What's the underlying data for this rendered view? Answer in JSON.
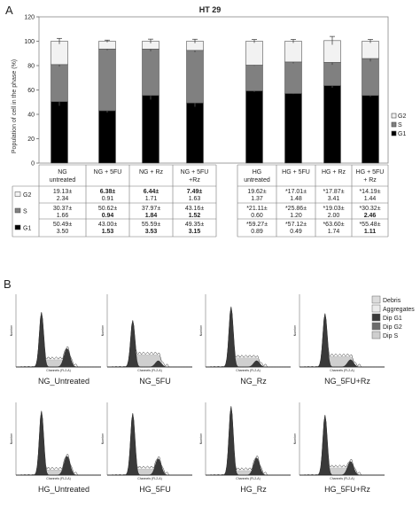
{
  "panel_a": {
    "letter": "A",
    "title": "HT 29",
    "ylabel": "Population of cell in the phase (%)",
    "legend": [
      "G2",
      "S",
      "G1"
    ]
  },
  "panel_b": {
    "letter": "B",
    "legend": [
      "Debris",
      "Aggregates",
      "Dip G1",
      "Dip G2",
      "Dip S"
    ],
    "histogram_xlabel": "Channels (FL2-A)",
    "histogram_ylabel": "Number",
    "histograms": [
      {
        "label": "NG_Untreated",
        "g1": 50.49,
        "s": 30.37,
        "g2": 19.13
      },
      {
        "label": "NG_5FU",
        "g1": 43.0,
        "s": 50.62,
        "g2": 6.38
      },
      {
        "label": "NG_Rz",
        "g1": 55.59,
        "s": 37.97,
        "g2": 6.44
      },
      {
        "label": "NG_5FU+Rz",
        "g1": 49.35,
        "s": 43.16,
        "g2": 7.49
      },
      {
        "label": "HG_Untreated",
        "g1": 59.27,
        "s": 21.11,
        "g2": 19.62
      },
      {
        "label": "HG_5FU",
        "g1": 57.12,
        "s": 25.86,
        "g2": 17.01
      },
      {
        "label": "HG_Rz",
        "g1": 63.6,
        "s": 19.03,
        "g2": 17.87
      },
      {
        "label": "HG_5FU+Rz",
        "g1": 55.48,
        "s": 30.32,
        "g2": 14.19
      }
    ]
  },
  "table": {
    "row_labels": [
      "G2",
      "S",
      "G1"
    ],
    "columns": [
      {
        "header": [
          "NG",
          "untreated"
        ],
        "g2": [
          "19.13±",
          "2.34"
        ],
        "s": [
          "30.37±",
          "1.66"
        ],
        "g1": [
          "50.49±",
          "3.50"
        ]
      },
      {
        "header": [
          "NG + 5FU",
          ""
        ],
        "g2": [
          "6.38±",
          "0.91"
        ],
        "s": [
          "50.62±",
          "0.94"
        ],
        "g1": [
          "43.00±",
          "1.53"
        ]
      },
      {
        "header": [
          "NG + Rz",
          ""
        ],
        "g2": [
          "6.44±",
          "1.71"
        ],
        "s": [
          "37.97±",
          "1.84"
        ],
        "g1": [
          "55.59±",
          "3.53"
        ]
      },
      {
        "header": [
          "NG + 5FU",
          "+Rz"
        ],
        "g2": [
          "7.49±",
          "1.63"
        ],
        "s": [
          "43.16±",
          "1.52"
        ],
        "g1": [
          "49.35±",
          "3.15"
        ]
      },
      {
        "header": [
          "HG",
          "untreated"
        ],
        "g2": [
          "19.62±",
          "1.37"
        ],
        "s": [
          "*21.11±",
          "0.60"
        ],
        "g1": [
          "*59.27±",
          "0.89"
        ]
      },
      {
        "header": [
          "HG + 5FU",
          ""
        ],
        "g2": [
          "*17.01±",
          "1.48"
        ],
        "s": [
          "*25.86±",
          "1.20"
        ],
        "g1": [
          "*57.12±",
          "0.49"
        ]
      },
      {
        "header": [
          "HG + Rz",
          ""
        ],
        "g2": [
          "*17.87±",
          "3.41"
        ],
        "s": [
          "*19.03±",
          "2.00"
        ],
        "g1": [
          "*63.60±",
          "1.74"
        ]
      },
      {
        "header": [
          "HG + 5FU",
          "+ Rz"
        ],
        "g2": [
          "*14.19±",
          "1.44"
        ],
        "s": [
          "*30.32±",
          "2.46"
        ],
        "g1": [
          "*55.48±",
          "1.11"
        ]
      }
    ]
  },
  "chart_data": {
    "type": "bar",
    "stacked": true,
    "title": "HT 29",
    "ylabel": "Population of cell in the phase (%)",
    "ylim": [
      0,
      120
    ],
    "yticks": [
      0,
      20,
      40,
      60,
      80,
      100,
      120
    ],
    "categories": [
      "NG untreated",
      "NG + 5FU",
      "NG + Rz",
      "NG + 5FU +Rz",
      "HG untreated",
      "HG + 5FU",
      "HG + Rz",
      "HG + 5FU + Rz"
    ],
    "series": [
      {
        "name": "G1",
        "color": "#000000",
        "values": [
          50.49,
          43.0,
          55.59,
          49.35,
          59.27,
          57.12,
          63.6,
          55.48
        ],
        "errors": [
          3.5,
          1.53,
          3.53,
          3.15,
          0.89,
          0.49,
          1.74,
          1.11
        ]
      },
      {
        "name": "S",
        "color": "#808080",
        "values": [
          30.37,
          50.62,
          37.97,
          43.16,
          21.11,
          25.86,
          19.03,
          30.32
        ],
        "errors": [
          1.66,
          0.94,
          1.84,
          1.52,
          0.6,
          1.2,
          2.0,
          2.46
        ]
      },
      {
        "name": "G2",
        "color": "#f2f2f2",
        "values": [
          19.13,
          6.38,
          6.44,
          7.49,
          19.62,
          17.01,
          17.87,
          14.19
        ],
        "errors": [
          2.34,
          0.91,
          1.71,
          1.63,
          1.37,
          1.48,
          3.41,
          1.44
        ]
      }
    ],
    "legend_position": "right"
  }
}
